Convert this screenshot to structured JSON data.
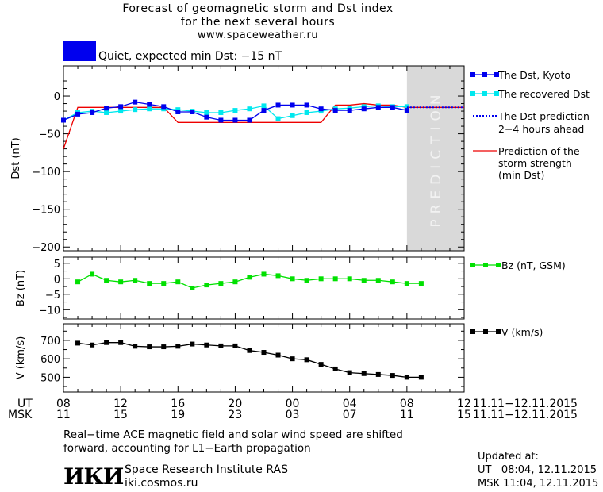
{
  "header": {
    "title_line1": "Forecast of geomagnetic storm and Dst index",
    "title_line2": "for the next several hours",
    "website": "www.spaceweather.ru"
  },
  "status": {
    "text": "Quiet, expected min Dst: −15 nT",
    "color": "#0000ee"
  },
  "legend": {
    "dst_kyoto": "The Dst, Kyoto",
    "dst_recovered": "The recovered Dst",
    "dst_prediction_line1": "The Dst prediction",
    "dst_prediction_line2": "2−4 hours ahead",
    "storm_line1": "Prediction of the",
    "storm_line2": "storm strength",
    "storm_line3": "(min Dst)",
    "bz": "Bz (nT, GSM)",
    "v": "V (km/s)"
  },
  "colors": {
    "dst_kyoto": "#0000ee",
    "dst_recovered": "#00e8ee",
    "dst_prediction": "#0000ee",
    "storm": "#ee0000",
    "bz": "#00e000",
    "v": "#000000",
    "prediction_zone": "#d9d9d9",
    "status_box": "#0000ee"
  },
  "time_axis": {
    "ut_label": "UT",
    "msk_label": "MSK",
    "ut_ticks": [
      "08",
      "12",
      "16",
      "20",
      "00",
      "04",
      "08",
      "12"
    ],
    "msk_ticks": [
      "11",
      "15",
      "19",
      "23",
      "03",
      "07",
      "11",
      "15"
    ],
    "date_range_ut": "11.11−12.11.2015",
    "date_range_msk": "11.11−12.11.2015"
  },
  "chart_data": [
    {
      "type": "line",
      "ylabel": "Dst (nT)",
      "xlabel": "UT hours",
      "x_range_hours": [
        0,
        28
      ],
      "ylim": [
        -205,
        40
      ],
      "y_ticks": [
        0,
        -50,
        -100,
        -150,
        -200
      ],
      "prediction_zone_hours": [
        24,
        28
      ],
      "prediction_zone_label": "PREDICTION",
      "series": [
        {
          "name": "The Dst, Kyoto",
          "x": [
            0,
            1,
            2,
            3,
            4,
            5,
            6,
            7,
            8,
            9,
            10,
            11,
            12,
            13,
            14,
            15,
            16,
            17,
            18,
            19,
            20,
            21,
            22,
            23,
            24
          ],
          "y": [
            -32,
            -24,
            -22,
            -16,
            -14,
            -8,
            -11,
            -14,
            -21,
            -21,
            -28,
            -32,
            -32,
            -32,
            -19,
            -12,
            -12,
            -12,
            -17,
            -19,
            -19,
            -17,
            -15,
            -15,
            -19
          ]
        },
        {
          "name": "The recovered Dst",
          "x": [
            0,
            1,
            2,
            3,
            4,
            5,
            6,
            7,
            8,
            9,
            10,
            11,
            12,
            13,
            14,
            15,
            16,
            17,
            18,
            19,
            20,
            21,
            22,
            23,
            24
          ],
          "y": [
            -32,
            -22,
            -20,
            -22,
            -20,
            -18,
            -17,
            -17,
            -18,
            -20,
            -22,
            -22,
            -19,
            -17,
            -13,
            -30,
            -26,
            -22,
            -20,
            -17,
            -16,
            -14,
            -13,
            -14,
            -14
          ]
        },
        {
          "name": "The Dst prediction 2−4 hours ahead",
          "x": [
            24,
            25,
            26,
            27,
            28
          ],
          "y": [
            -15,
            -15,
            -15,
            -15,
            -15
          ]
        },
        {
          "name": "Prediction of the storm strength (min Dst)",
          "x": [
            0,
            1,
            2,
            3,
            4,
            5,
            6,
            7,
            8,
            9,
            10,
            11,
            12,
            13,
            14,
            15,
            16,
            17,
            18,
            19,
            20,
            21,
            22,
            23,
            24,
            25,
            26,
            27,
            28
          ],
          "y": [
            -70,
            -15,
            -15,
            -15,
            -15,
            -15,
            -15,
            -15,
            -35,
            -35,
            -35,
            -35,
            -35,
            -35,
            -35,
            -35,
            -35,
            -35,
            -35,
            -12,
            -12,
            -10,
            -12,
            -12,
            -15,
            -15,
            -15,
            -15,
            -15
          ]
        }
      ]
    },
    {
      "type": "line",
      "ylabel": "Bz (nT)",
      "ylim": [
        -13,
        7
      ],
      "y_ticks": [
        5,
        0,
        -5,
        -10
      ],
      "series": [
        {
          "name": "Bz (nT, GSM)",
          "x": [
            1,
            2,
            3,
            4,
            5,
            6,
            7,
            8,
            9,
            10,
            11,
            12,
            13,
            14,
            15,
            16,
            17,
            18,
            19,
            20,
            21,
            22,
            23,
            24,
            25
          ],
          "y": [
            -1,
            1.5,
            -0.5,
            -1,
            -0.5,
            -1.5,
            -1.5,
            -1,
            -3,
            -2,
            -1.5,
            -1,
            0.5,
            1.5,
            1,
            0,
            -0.5,
            0,
            0,
            0,
            -0.5,
            -0.5,
            -1,
            -1.5,
            -1.5
          ]
        }
      ]
    },
    {
      "type": "line",
      "ylabel": "V (km/s)",
      "ylim": [
        420,
        790
      ],
      "y_ticks": [
        700,
        600,
        500
      ],
      "series": [
        {
          "name": "V (km/s)",
          "x": [
            1,
            2,
            3,
            4,
            5,
            6,
            7,
            8,
            9,
            10,
            11,
            12,
            13,
            14,
            15,
            16,
            17,
            18,
            19,
            20,
            21,
            22,
            23,
            24,
            25
          ],
          "y": [
            685,
            675,
            688,
            688,
            668,
            665,
            665,
            668,
            680,
            675,
            670,
            670,
            645,
            635,
            620,
            600,
            595,
            570,
            545,
            525,
            520,
            515,
            510,
            500,
            500
          ]
        }
      ]
    }
  ],
  "footer": {
    "note_line1": "Real−time ACE magnetic field and solar wind speed are shifted",
    "note_line2": "forward, accounting for L1−Earth propagation",
    "logo_text": "ИКИ",
    "institute": "Space Research Institute RAS",
    "institute_url": "iki.cosmos.ru",
    "updated_label": "Updated at:",
    "updated_ut": "UT   08:04, 12.11.2015",
    "updated_msk": "MSK 11:04, 12.11.2015"
  }
}
